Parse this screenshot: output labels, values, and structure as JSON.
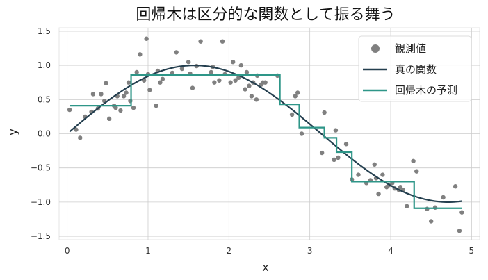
{
  "chart_data": {
    "type": "scatter",
    "title": "回帰木は区分的な関数として振る舞う",
    "xlabel": "x",
    "ylabel": "y",
    "xlim": [
      -0.1,
      5.1
    ],
    "ylim": [
      -1.55,
      1.55
    ],
    "xticks": [
      0,
      1,
      2,
      3,
      4,
      5
    ],
    "yticks": [
      -1.5,
      -1.0,
      -0.5,
      0.0,
      0.5,
      1.0,
      1.5
    ],
    "xtick_labels": [
      "0",
      "1",
      "2",
      "3",
      "4",
      "5"
    ],
    "ytick_labels": [
      "−1.5",
      "−1.0",
      "−0.5",
      "0.0",
      "0.5",
      "1.0",
      "1.5"
    ],
    "grid": true,
    "legend_position": "top-right",
    "colors": {
      "points": "#808080",
      "true_function": "#243f4f",
      "tree_prediction": "#2e9688"
    },
    "series": [
      {
        "name": "観測値",
        "kind": "scatter",
        "x": [
          0.03,
          0.11,
          0.16,
          0.22,
          0.3,
          0.32,
          0.38,
          0.42,
          0.46,
          0.48,
          0.52,
          0.58,
          0.6,
          0.62,
          0.66,
          0.7,
          0.73,
          0.76,
          0.78,
          0.82,
          0.86,
          0.9,
          0.95,
          0.98,
          1.0,
          1.02,
          1.1,
          1.12,
          1.15,
          1.18,
          1.3,
          1.35,
          1.42,
          1.5,
          1.52,
          1.55,
          1.6,
          1.65,
          1.78,
          1.8,
          1.82,
          1.88,
          1.92,
          1.95,
          2.02,
          2.05,
          2.08,
          2.12,
          2.15,
          2.2,
          2.22,
          2.25,
          2.28,
          2.3,
          2.34,
          2.35,
          2.4,
          2.42,
          2.45,
          2.6,
          2.78,
          2.82,
          2.85,
          2.9,
          3.15,
          3.18,
          3.3,
          3.32,
          3.35,
          3.45,
          3.52,
          3.6,
          3.7,
          3.75,
          3.8,
          3.82,
          3.85,
          3.9,
          3.95,
          3.98,
          4.02,
          4.05,
          4.1,
          4.12,
          4.15,
          4.2,
          4.28,
          4.32,
          4.45,
          4.5,
          4.55,
          4.65,
          4.8,
          4.85,
          4.88
        ],
        "y": [
          0.35,
          0.06,
          -0.06,
          0.25,
          0.32,
          0.58,
          0.37,
          0.58,
          0.48,
          0.74,
          0.22,
          0.41,
          0.38,
          0.55,
          0.34,
          0.55,
          0.6,
          0.75,
          0.48,
          0.38,
          0.9,
          1.16,
          0.78,
          1.39,
          0.87,
          0.64,
          0.41,
          0.92,
          0.75,
          0.8,
          0.89,
          1.19,
          0.95,
          1.05,
          0.88,
          0.67,
          0.99,
          1.35,
          0.9,
          0.98,
          0.75,
          0.78,
          1.35,
          0.87,
          0.75,
          1.05,
          0.78,
          0.82,
          1.0,
          0.65,
          0.9,
          0.7,
          0.55,
          0.75,
          0.5,
          0.85,
          0.72,
          0.75,
          0.75,
          0.85,
          0.28,
          0.55,
          0.6,
          0.0,
          -0.28,
          0.31,
          -0.38,
          0.05,
          -0.35,
          -0.15,
          -0.67,
          -0.6,
          -0.72,
          -0.68,
          -0.45,
          -0.65,
          -0.88,
          -0.6,
          -0.78,
          -0.75,
          -0.72,
          -0.8,
          -0.82,
          -0.78,
          -0.82,
          -1.06,
          -0.4,
          -0.55,
          -1.1,
          -1.28,
          -1.08,
          -0.93,
          -0.77,
          -1.42,
          -1.15
        ]
      },
      {
        "name": "真の関数",
        "kind": "line",
        "function": "sin(x)",
        "x_range": [
          0.03,
          4.88
        ]
      },
      {
        "name": "回帰木の予測",
        "kind": "step",
        "steps": [
          {
            "x0": 0.03,
            "x1": 0.79,
            "y": 0.41
          },
          {
            "x0": 0.79,
            "x1": 2.63,
            "y": 0.86
          },
          {
            "x0": 2.63,
            "x1": 2.87,
            "y": 0.43
          },
          {
            "x0": 2.87,
            "x1": 3.18,
            "y": 0.09
          },
          {
            "x0": 3.18,
            "x1": 3.33,
            "y": -0.06
          },
          {
            "x0": 3.33,
            "x1": 3.52,
            "y": -0.27
          },
          {
            "x0": 3.52,
            "x1": 4.29,
            "y": -0.7
          },
          {
            "x0": 4.29,
            "x1": 4.88,
            "y": -1.09
          }
        ]
      }
    ]
  }
}
